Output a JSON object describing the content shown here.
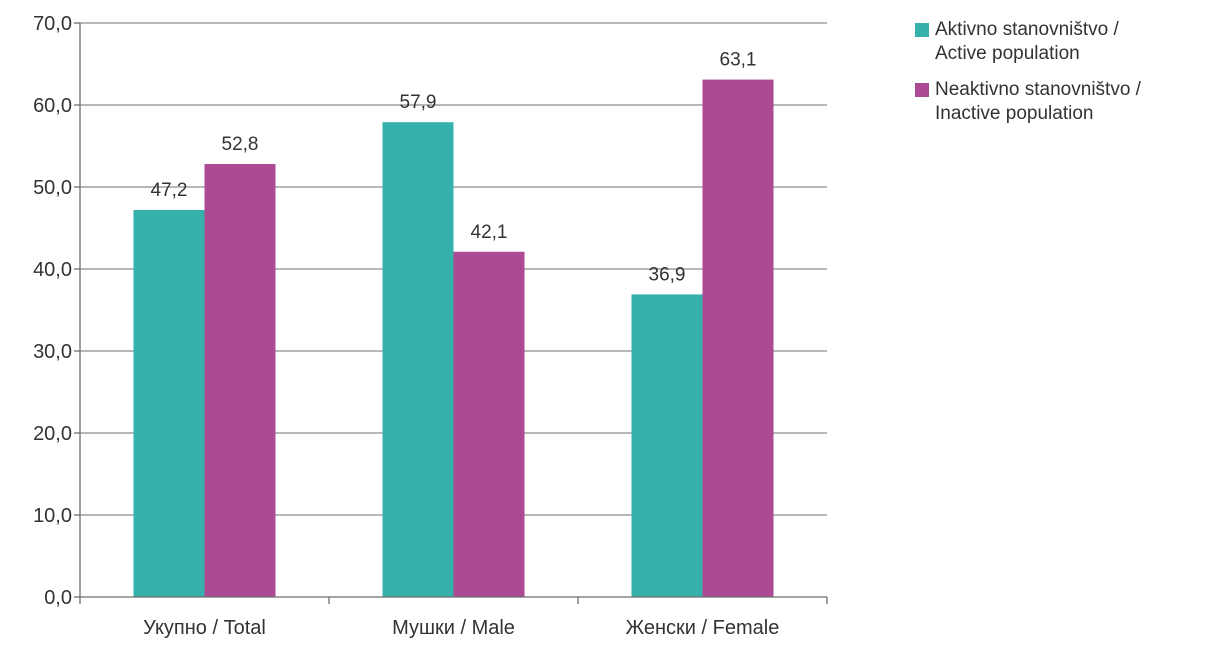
{
  "chart_data": {
    "type": "bar",
    "categories": [
      "Укупно / Total",
      "Мушки / Male",
      "Женски / Female"
    ],
    "series": [
      {
        "name": "Aktivno stanovništvo / Active population",
        "legend_lines": [
          "Aktivno stanovništvo /",
          "Active population"
        ],
        "color": "#35b0ab",
        "values": [
          47.2,
          57.9,
          36.9
        ],
        "labels": [
          "47,2",
          "57,9",
          "36,9"
        ]
      },
      {
        "name": "Neaktivno stanovništvo / Inactive population",
        "legend_lines": [
          "Neaktivno stanovništvo /",
          "Inactive population"
        ],
        "color": "#ad4a94",
        "values": [
          52.8,
          42.1,
          63.1
        ],
        "labels": [
          "52,8",
          "42,1",
          "63,1"
        ]
      }
    ],
    "ylim": [
      0,
      70
    ],
    "yticks": [
      0,
      10,
      20,
      30,
      40,
      50,
      60,
      70
    ],
    "ytick_labels": [
      "0,0",
      "10,0",
      "20,0",
      "30,0",
      "40,0",
      "50,0",
      "60,0",
      "70,0"
    ],
    "grid": true,
    "legend_position": "right",
    "title": "",
    "xlabel": "",
    "ylabel": ""
  }
}
